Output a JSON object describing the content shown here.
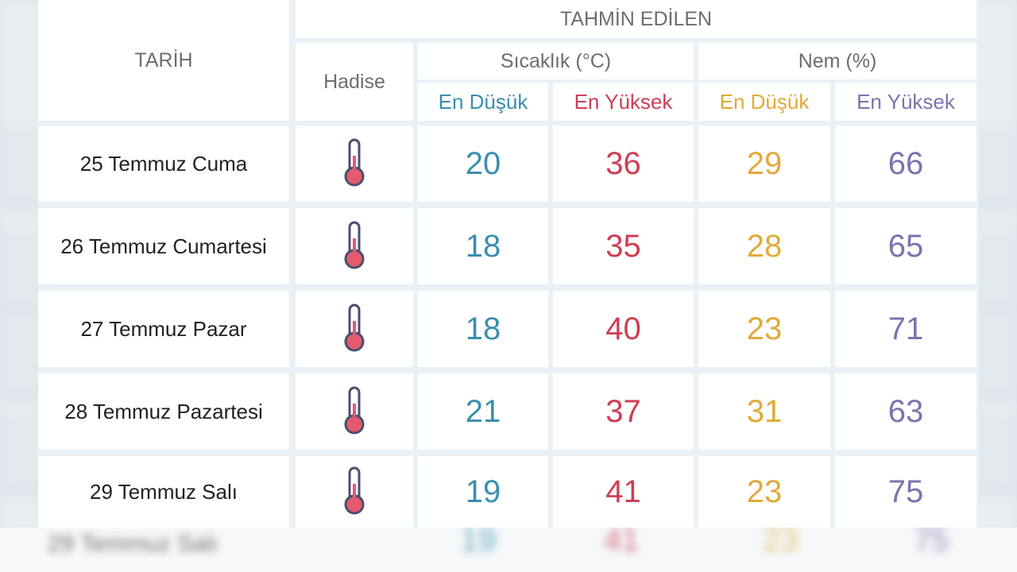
{
  "header": {
    "group_title": "TAHMİN EDİLEN",
    "date_col": "TARİH",
    "event_col": "Hadise",
    "temp_group": "Sıcaklık (°C)",
    "humidity_group": "Nem (%)",
    "temp_min": "En Düşük",
    "temp_max": "En Yüksek",
    "hum_min": "En Düşük",
    "hum_max": "En Yüksek"
  },
  "rows": [
    {
      "date": "25 Temmuz Cuma",
      "icon": "thermometer-icon",
      "temp_min": "20",
      "temp_max": "36",
      "hum_min": "29",
      "hum_max": "66"
    },
    {
      "date": "26 Temmuz Cumartesi",
      "icon": "thermometer-icon",
      "temp_min": "18",
      "temp_max": "35",
      "hum_min": "28",
      "hum_max": "65"
    },
    {
      "date": "27 Temmuz Pazar",
      "icon": "thermometer-icon",
      "temp_min": "18",
      "temp_max": "40",
      "hum_min": "23",
      "hum_max": "71"
    },
    {
      "date": "28 Temmuz Pazartesi",
      "icon": "thermometer-icon",
      "temp_min": "21",
      "temp_max": "37",
      "hum_min": "31",
      "hum_max": "63"
    },
    {
      "date": "29 Temmuz Salı",
      "icon": "thermometer-icon",
      "temp_min": "19",
      "temp_max": "41",
      "hum_min": "23",
      "hum_max": "75"
    }
  ],
  "colors": {
    "temp_min": "#3a8fb0",
    "temp_max": "#cf3d55",
    "hum_min": "#e1aa3a",
    "hum_max": "#7b74ad",
    "grid": "#e9f1f7"
  }
}
